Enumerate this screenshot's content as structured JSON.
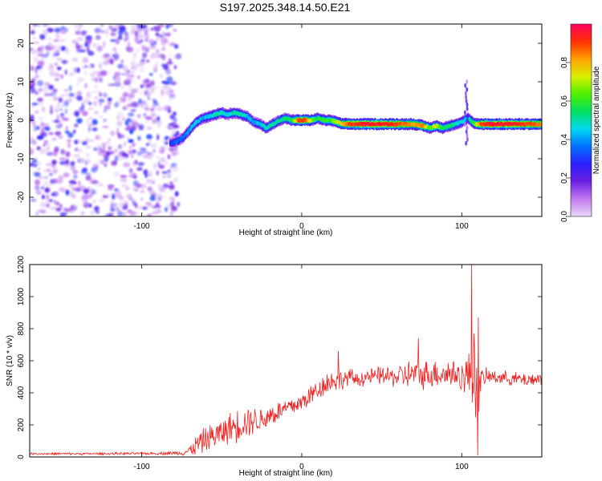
{
  "title": "S197.2025.348.14.50.E21",
  "chart_data": [
    {
      "type": "heatmap",
      "name": "spectrogram",
      "xlabel": "Height of straight line (km)",
      "ylabel": "Frequency (Hz)",
      "xlim": [
        -170,
        150
      ],
      "ylim": [
        -25,
        25
      ],
      "xticks": [
        -100,
        0,
        100
      ],
      "yticks": [
        20,
        10,
        0,
        -10,
        -20
      ],
      "colorbar": {
        "label": "Normalized spectral amplitude",
        "range": [
          0.0,
          1.0
        ],
        "ticks": [
          0.0,
          0.2,
          0.4,
          0.6,
          0.8
        ],
        "stops": [
          "#e8d8f8",
          "#c27bf0",
          "#6a1fe0",
          "#2b20ff",
          "#0070ff",
          "#00d8f0",
          "#00e060",
          "#50f000",
          "#d8f000",
          "#ffa000",
          "#ff3000",
          "#ff0060"
        ]
      },
      "noise_region": {
        "x_start": -170,
        "x_end": -80,
        "amplitude": 0.15
      },
      "ridge": {
        "x": [
          -82,
          -78,
          -74,
          -70,
          -66,
          -62,
          -58,
          -54,
          -50,
          -46,
          -42,
          -38,
          -34,
          -30,
          -26,
          -22,
          -18,
          -14,
          -10,
          -6,
          -2,
          2,
          6,
          10,
          14,
          18,
          22,
          26,
          30,
          40,
          50,
          60,
          70,
          76,
          80,
          84,
          88,
          92,
          96,
          100,
          104,
          108,
          112,
          120,
          130,
          140,
          150
        ],
        "freq": [
          -6,
          -5.5,
          -4.5,
          -2.5,
          -0.5,
          0.5,
          1,
          1.5,
          2,
          1.5,
          2,
          1.5,
          1,
          -0.5,
          -1,
          -2,
          -1,
          0,
          0.5,
          0,
          0,
          0,
          0,
          0.5,
          0,
          0,
          -0.5,
          -1,
          -1,
          -1,
          -1,
          -1,
          -1,
          -1.5,
          -2,
          -1.5,
          -2,
          -1.5,
          -1,
          -0.5,
          0.5,
          -1,
          -1,
          -1,
          -1,
          -1,
          -1
        ],
        "amp": [
          0.3,
          0.35,
          0.35,
          0.4,
          0.45,
          0.4,
          0.45,
          0.5,
          0.5,
          0.45,
          0.5,
          0.5,
          0.45,
          0.4,
          0.45,
          0.5,
          0.5,
          0.5,
          0.55,
          0.55,
          0.9,
          0.9,
          0.7,
          0.55,
          0.6,
          0.6,
          0.7,
          0.8,
          0.9,
          0.95,
          0.95,
          0.9,
          0.8,
          0.85,
          0.6,
          0.75,
          0.55,
          0.55,
          0.5,
          0.45,
          0.45,
          0.6,
          0.9,
          0.95,
          0.95,
          0.9,
          0.85
        ]
      }
    },
    {
      "type": "line",
      "name": "snr",
      "xlabel": "Height of straight line (km)",
      "ylabel": "SNR (10 * v/v)",
      "xlim": [
        -170,
        150
      ],
      "ylim": [
        0,
        1200
      ],
      "xticks": [
        -100,
        0,
        100
      ],
      "yticks": [
        0,
        200,
        400,
        600,
        800,
        1000,
        1200
      ],
      "color": "#ee2222",
      "series": {
        "x": [
          -170,
          -130,
          -90,
          -75,
          -70,
          -65,
          -60,
          -55,
          -50,
          -45,
          -40,
          -35,
          -30,
          -25,
          -20,
          -15,
          -10,
          -5,
          0,
          5,
          10,
          15,
          20,
          25,
          30,
          35,
          40,
          45,
          50,
          55,
          60,
          65,
          70,
          75,
          80,
          85,
          90,
          95,
          100,
          105,
          108,
          110,
          112,
          115,
          120,
          130,
          140,
          150
        ],
        "mean": [
          20,
          20,
          22,
          25,
          40,
          80,
          110,
          130,
          150,
          180,
          200,
          220,
          230,
          230,
          260,
          280,
          300,
          320,
          340,
          380,
          420,
          460,
          480,
          480,
          500,
          480,
          500,
          500,
          510,
          500,
          500,
          510,
          520,
          510,
          520,
          520,
          520,
          520,
          500,
          510,
          600,
          400,
          480,
          500,
          500,
          490,
          480,
          490
        ],
        "spread": [
          8,
          8,
          10,
          15,
          40,
          80,
          90,
          100,
          100,
          110,
          120,
          120,
          100,
          90,
          90,
          80,
          70,
          70,
          70,
          80,
          80,
          80,
          90,
          70,
          60,
          60,
          60,
          60,
          70,
          70,
          80,
          100,
          110,
          100,
          110,
          100,
          110,
          110,
          110,
          180,
          400,
          300,
          80,
          60,
          50,
          50,
          50,
          50
        ],
        "peaks": [
          {
            "x": 106,
            "y": 1200
          },
          {
            "x": 110,
            "y": 10
          },
          {
            "x": 110.5,
            "y": 870
          },
          {
            "x": 23,
            "y": 660
          },
          {
            "x": 73,
            "y": 740
          }
        ]
      }
    }
  ]
}
